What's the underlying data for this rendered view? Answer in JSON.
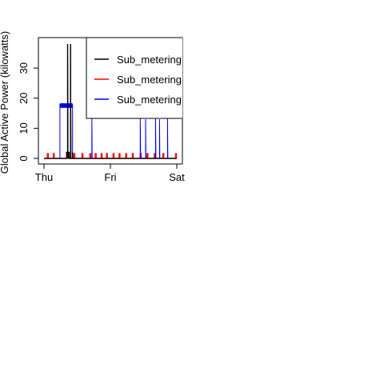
{
  "chart_data": {
    "type": "line",
    "title": "",
    "xlabel": "",
    "ylabel": "Global Active Power (kilowatts)",
    "x_ticks": [
      "Thu",
      "Fri",
      "Sat"
    ],
    "x_range": [
      0,
      2
    ],
    "ylim": [
      0,
      38
    ],
    "y_ticks": [
      0,
      10,
      20,
      30
    ],
    "grid": false,
    "legend_position": "top-right",
    "series": [
      {
        "name": "Sub_metering",
        "color": "#000000",
        "points": [
          [
            0.0,
            0
          ],
          [
            0.34,
            0
          ],
          [
            0.34,
            2
          ],
          [
            0.355,
            2
          ],
          [
            0.355,
            38
          ],
          [
            0.36,
            0
          ],
          [
            0.375,
            2
          ],
          [
            0.38,
            2
          ],
          [
            0.38,
            0
          ],
          [
            0.4,
            0
          ],
          [
            0.4,
            38
          ],
          [
            0.405,
            0
          ],
          [
            0.43,
            0
          ],
          [
            0.43,
            2
          ],
          [
            0.435,
            0
          ],
          [
            2.0,
            0
          ]
        ]
      },
      {
        "name": "Sub_metering",
        "color": "#ff0000",
        "points": [
          [
            0.0,
            0
          ],
          [
            0.05,
            0
          ],
          [
            0.05,
            1.6
          ],
          [
            0.065,
            1.6
          ],
          [
            0.065,
            0
          ],
          [
            0.14,
            0
          ],
          [
            0.14,
            1.6
          ],
          [
            0.155,
            1.6
          ],
          [
            0.155,
            0
          ],
          [
            0.34,
            0
          ],
          [
            0.34,
            1.6
          ],
          [
            0.355,
            1.6
          ],
          [
            0.355,
            0
          ],
          [
            0.45,
            0
          ],
          [
            0.45,
            1.6
          ],
          [
            0.465,
            1.6
          ],
          [
            0.465,
            0
          ],
          [
            0.57,
            0
          ],
          [
            0.57,
            1.6
          ],
          [
            0.585,
            1.6
          ],
          [
            0.585,
            0
          ],
          [
            0.69,
            0
          ],
          [
            0.69,
            1.6
          ],
          [
            0.705,
            1.6
          ],
          [
            0.705,
            0
          ],
          [
            0.77,
            0
          ],
          [
            0.77,
            1.6
          ],
          [
            0.785,
            1.6
          ],
          [
            0.785,
            0
          ],
          [
            0.86,
            0
          ],
          [
            0.86,
            1.6
          ],
          [
            0.875,
            1.6
          ],
          [
            0.875,
            0
          ],
          [
            0.94,
            0
          ],
          [
            0.94,
            1.6
          ],
          [
            0.955,
            1.6
          ],
          [
            0.955,
            0
          ],
          [
            1.04,
            0
          ],
          [
            1.04,
            1.6
          ],
          [
            1.055,
            1.6
          ],
          [
            1.055,
            0
          ],
          [
            1.13,
            0
          ],
          [
            1.13,
            1.6
          ],
          [
            1.145,
            1.6
          ],
          [
            1.145,
            0
          ],
          [
            1.23,
            0
          ],
          [
            1.23,
            1.6
          ],
          [
            1.245,
            1.6
          ],
          [
            1.245,
            0
          ],
          [
            1.33,
            0
          ],
          [
            1.33,
            1.6
          ],
          [
            1.345,
            1.6
          ],
          [
            1.345,
            0
          ],
          [
            1.45,
            0
          ],
          [
            1.45,
            1.6
          ],
          [
            1.465,
            1.6
          ],
          [
            1.465,
            0
          ],
          [
            1.55,
            0
          ],
          [
            1.55,
            1.6
          ],
          [
            1.565,
            1.6
          ],
          [
            1.565,
            0
          ],
          [
            1.66,
            0
          ],
          [
            1.66,
            1.6
          ],
          [
            1.675,
            1.6
          ],
          [
            1.675,
            0
          ],
          [
            1.79,
            0
          ],
          [
            1.79,
            1.6
          ],
          [
            1.805,
            1.6
          ],
          [
            1.805,
            0
          ],
          [
            1.98,
            0
          ],
          [
            1.98,
            1.6
          ],
          [
            1.995,
            1.6
          ],
          [
            1.995,
            0
          ]
        ]
      },
      {
        "name": "Sub_metering",
        "color": "#0000ff",
        "points": [
          [
            0.0,
            0
          ],
          [
            0.24,
            0
          ],
          [
            0.24,
            18
          ],
          [
            0.27,
            18
          ],
          [
            0.27,
            17.5
          ],
          [
            0.33,
            17.5
          ],
          [
            0.33,
            17
          ],
          [
            0.36,
            17
          ],
          [
            0.36,
            17.8
          ],
          [
            0.43,
            17.8
          ],
          [
            0.43,
            0
          ],
          [
            0.72,
            0
          ],
          [
            0.72,
            14
          ],
          [
            0.725,
            0
          ],
          [
            1.45,
            0
          ],
          [
            1.45,
            14
          ],
          [
            1.455,
            0
          ],
          [
            1.53,
            0
          ],
          [
            1.53,
            13
          ],
          [
            1.535,
            0
          ],
          [
            1.68,
            0
          ],
          [
            1.68,
            14
          ],
          [
            1.685,
            0
          ],
          [
            1.74,
            0
          ],
          [
            1.74,
            13
          ],
          [
            1.745,
            0
          ],
          [
            1.86,
            0
          ],
          [
            1.86,
            14
          ],
          [
            1.865,
            0
          ],
          [
            2.0,
            0
          ]
        ]
      }
    ]
  }
}
